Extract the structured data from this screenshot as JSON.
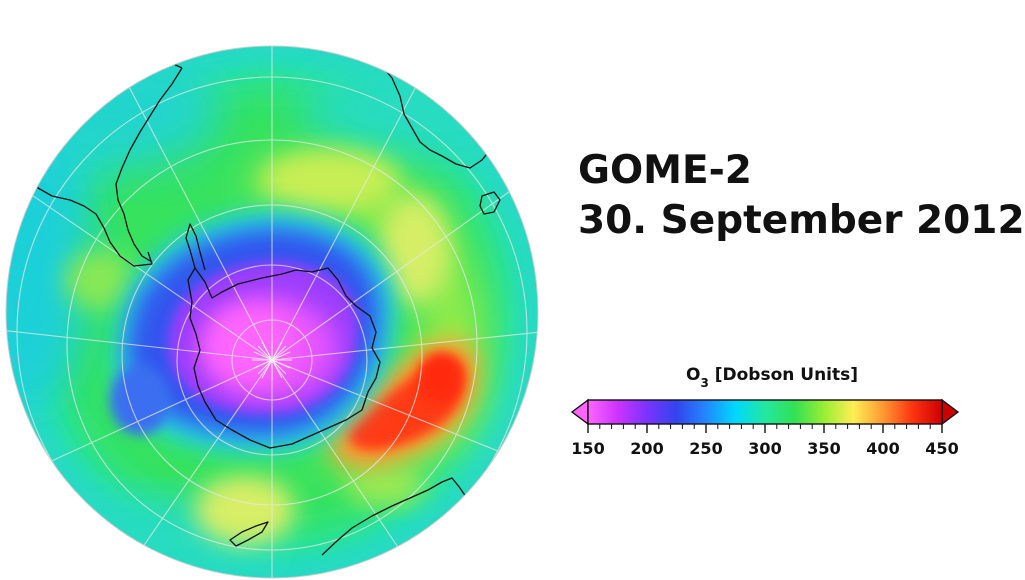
{
  "title": {
    "instrument": "GOME-2",
    "date": "30. September 2012"
  },
  "legend": {
    "quantity": "O",
    "quantity_subscript": "3",
    "units": " [Dobson Units]",
    "range": [
      150,
      450
    ],
    "ticks": [
      150,
      200,
      250,
      300,
      350,
      400,
      450
    ],
    "colors": [
      "#ff66ff",
      "#cc33ff",
      "#7a33ff",
      "#3344ee",
      "#2288ff",
      "#00d8ff",
      "#22e8a0",
      "#33e055",
      "#99ee33",
      "#ffee55",
      "#ff9933",
      "#ff3311",
      "#cc0000"
    ]
  },
  "map": {
    "projection": "south-polar orthographic",
    "ozone_hole": "Antarctica",
    "graticule": true,
    "coastlines": true
  }
}
